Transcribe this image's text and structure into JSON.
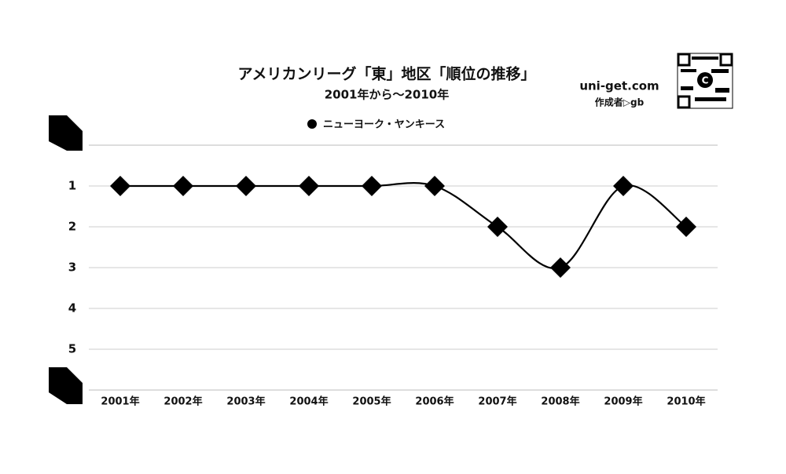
{
  "chart_data": {
    "type": "line",
    "title": "アメリカンリーグ「東」地区「順位の推移」",
    "subtitle": "2001年から～2010年",
    "brand": "uni-get.com",
    "author": "作成者▷gb",
    "categories": [
      "2001年",
      "2002年",
      "2003年",
      "2004年",
      "2005年",
      "2006年",
      "2007年",
      "2008年",
      "2009年",
      "2010年"
    ],
    "series": [
      {
        "name": "ニューヨーク・ヤンキース",
        "color": "#000000",
        "values": [
          1,
          1,
          1,
          1,
          1,
          1,
          2,
          3,
          1,
          2
        ]
      }
    ],
    "ylim": [
      0,
      6
    ],
    "y_reversed": true,
    "yticks": [
      1,
      2,
      3,
      4,
      5
    ],
    "grid": true,
    "smooth": true,
    "legend": "top"
  }
}
